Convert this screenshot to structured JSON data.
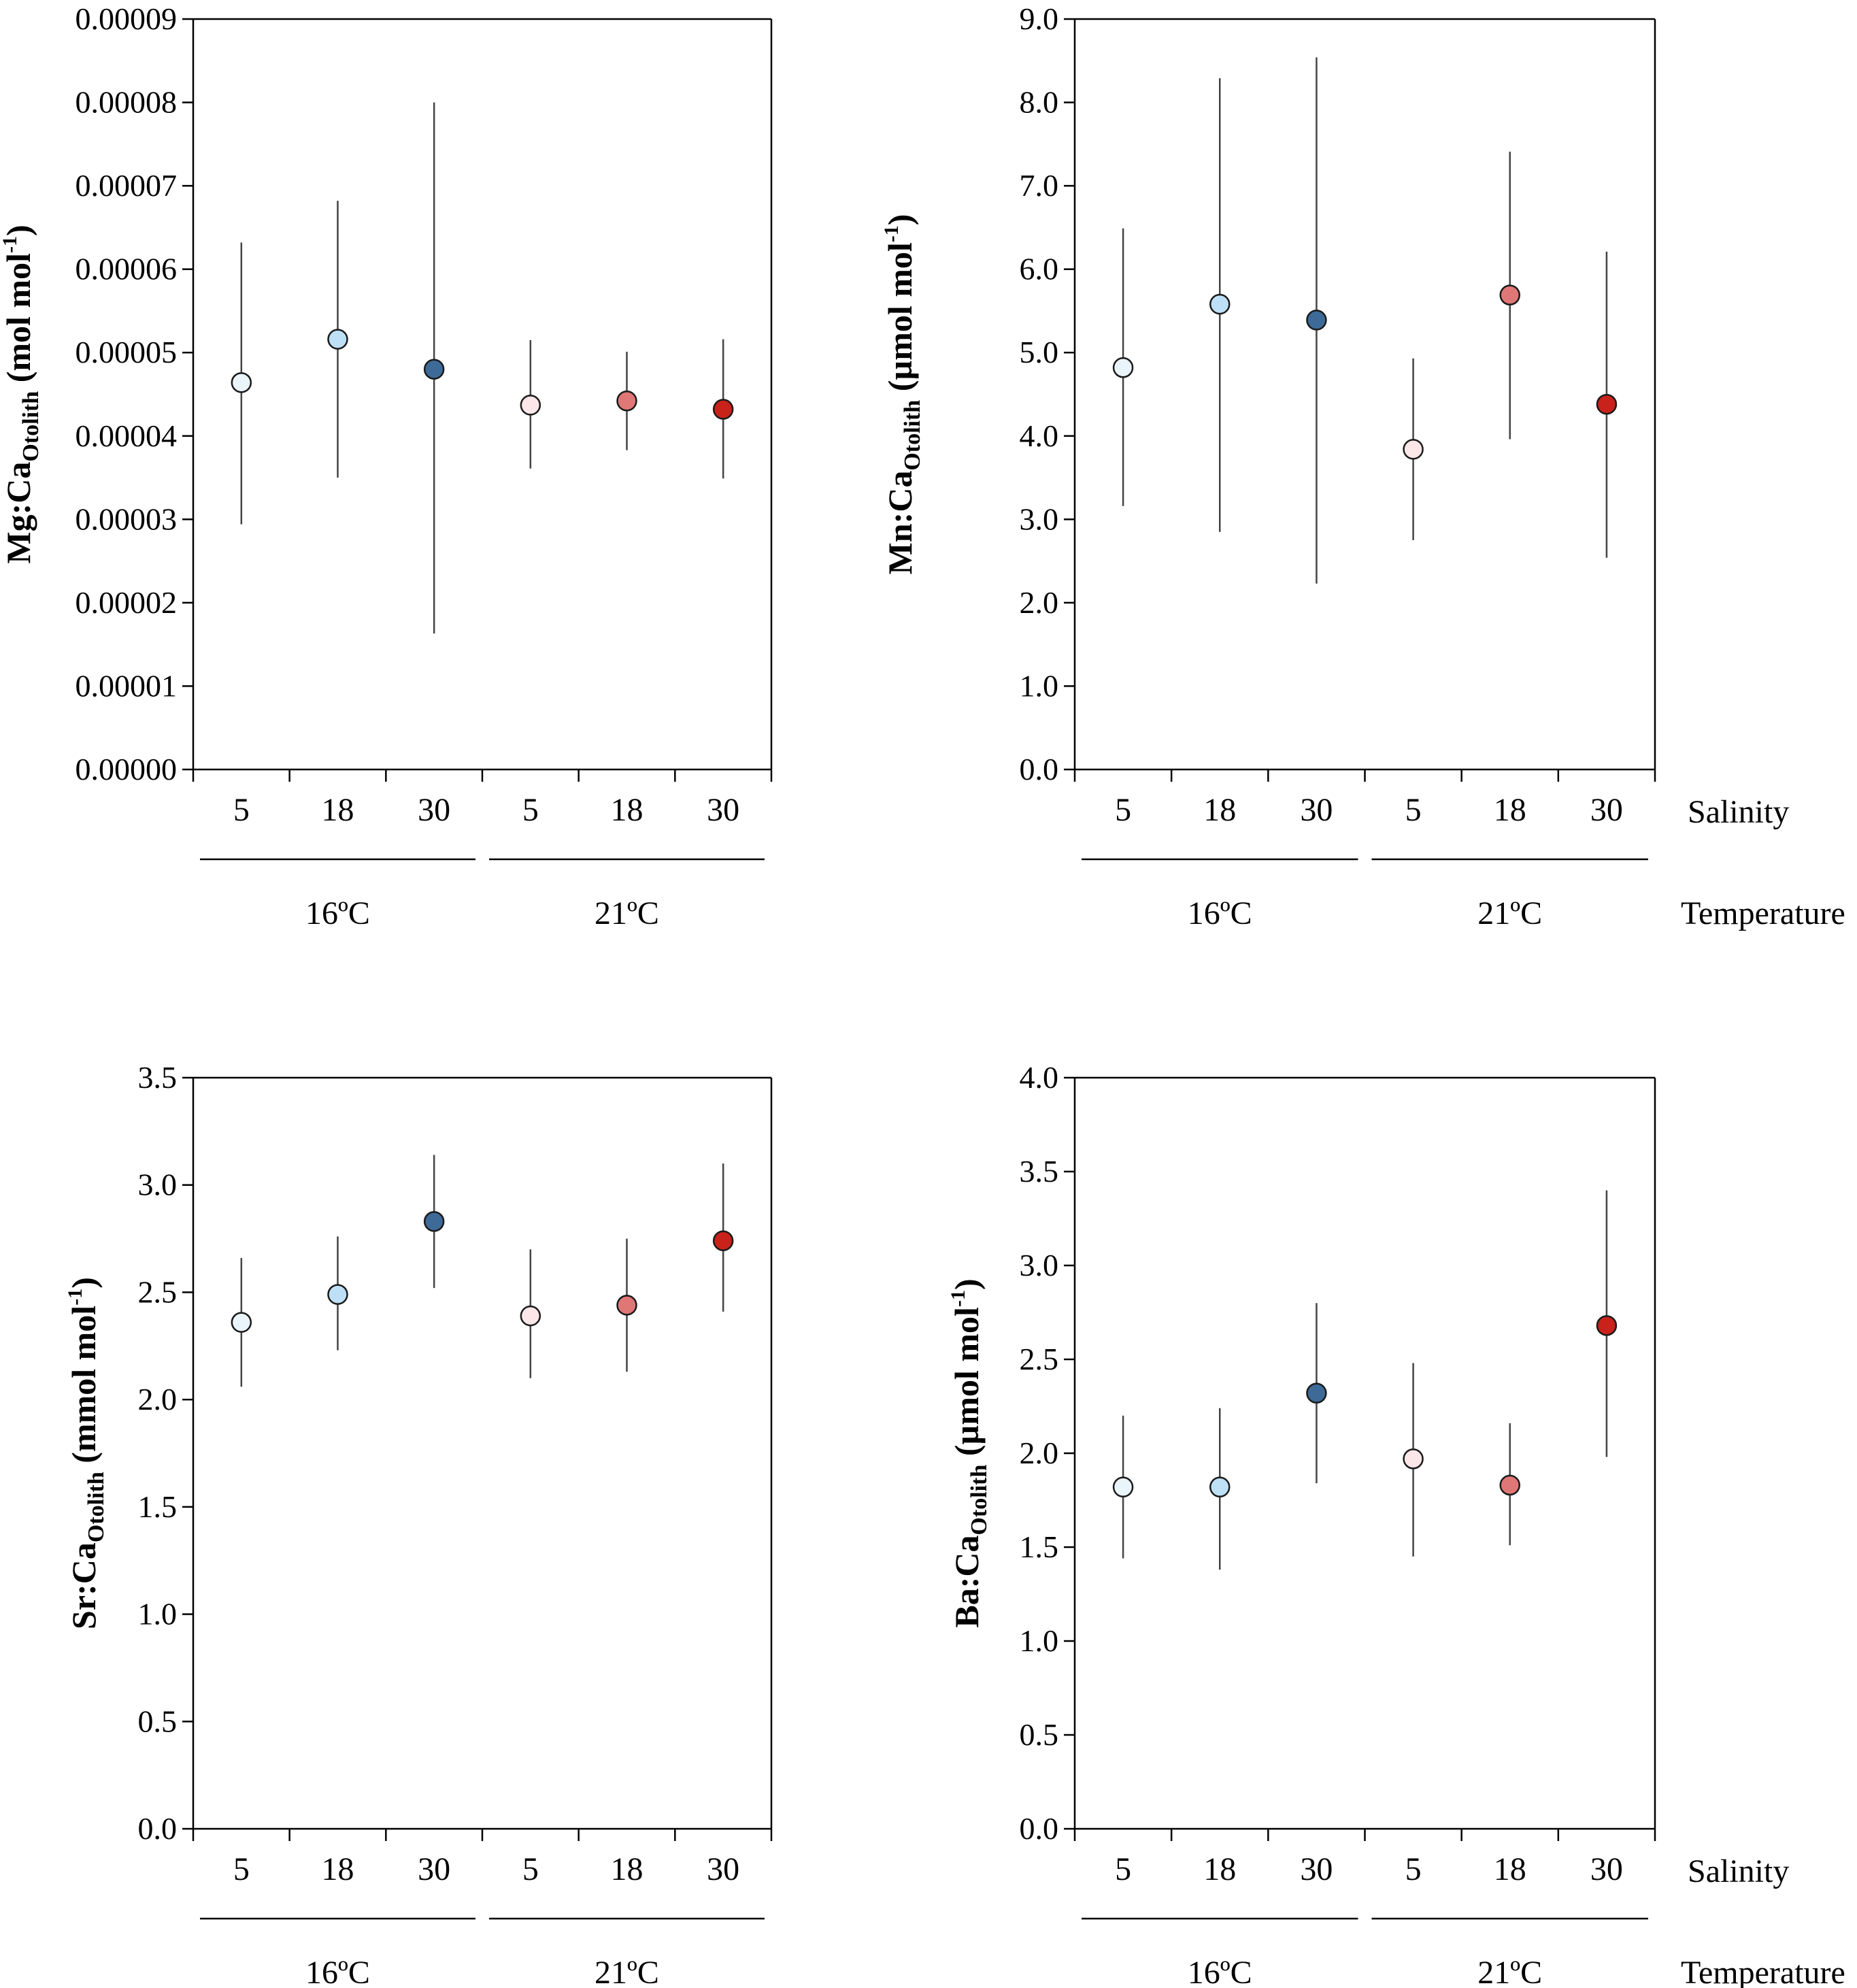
{
  "chart_data": [
    {
      "type": "scatter",
      "panel": "top-left",
      "ylabel": {
        "prefix": "Mg:Ca",
        "sub": "Otolith",
        "unit": " (mol mol",
        "sup": "-1",
        "close": ")"
      },
      "ylim": [
        0,
        9e-05
      ],
      "yticks": [
        0,
        1e-05,
        2e-05,
        3e-05,
        4e-05,
        5e-05,
        6e-05,
        7e-05,
        8e-05,
        9e-05
      ],
      "ytick_labels": [
        "0.00000",
        "0.00001",
        "0.00002",
        "0.00003",
        "0.00004",
        "0.00005",
        "0.00006",
        "0.00007",
        "0.00008",
        "0.00009"
      ],
      "categories": [
        "5",
        "18",
        "30",
        "5",
        "18",
        "30"
      ],
      "groups": [
        "16ºC",
        "21ºC"
      ],
      "values": [
        4.64e-05,
        5.16e-05,
        4.8e-05,
        4.37e-05,
        4.42e-05,
        4.32e-05
      ],
      "err_low": [
        2.94e-05,
        3.5e-05,
        1.63e-05,
        3.61e-05,
        3.83e-05,
        3.49e-05
      ],
      "err_high": [
        6.32e-05,
        6.82e-05,
        8e-05,
        5.15e-05,
        5.01e-05,
        5.16e-05
      ],
      "show_row_titles": false
    },
    {
      "type": "scatter",
      "panel": "top-right",
      "ylabel": {
        "prefix": "Mn:Ca",
        "sub": "Otolith",
        "unit": " (µmol mol",
        "sup": "-1",
        "close": ")"
      },
      "ylim": [
        0,
        9
      ],
      "yticks": [
        0,
        1,
        2,
        3,
        4,
        5,
        6,
        7,
        8,
        9
      ],
      "ytick_labels": [
        "0.0",
        "1.0",
        "2.0",
        "3.0",
        "4.0",
        "5.0",
        "6.0",
        "7.0",
        "8.0",
        "9.0"
      ],
      "categories": [
        "5",
        "18",
        "30",
        "5",
        "18",
        "30"
      ],
      "groups": [
        "16ºC",
        "21ºC"
      ],
      "values": [
        4.82,
        5.58,
        5.39,
        3.84,
        5.69,
        4.38
      ],
      "err_low": [
        3.16,
        2.85,
        2.23,
        2.75,
        3.96,
        2.54
      ],
      "err_high": [
        6.49,
        8.29,
        8.54,
        4.93,
        7.41,
        6.21
      ],
      "show_row_titles": true
    },
    {
      "type": "scatter",
      "panel": "bottom-left",
      "ylabel": {
        "prefix": "Sr:Ca",
        "sub": "Otolith",
        "unit": " (mmol mol",
        "sup": "-1",
        "close": ")"
      },
      "ylim": [
        0,
        3.5
      ],
      "yticks": [
        0,
        0.5,
        1.0,
        1.5,
        2.0,
        2.5,
        3.0,
        3.5
      ],
      "ytick_labels": [
        "0.0",
        "0.5",
        "1.0",
        "1.5",
        "2.0",
        "2.5",
        "3.0",
        "3.5"
      ],
      "categories": [
        "5",
        "18",
        "30",
        "5",
        "18",
        "30"
      ],
      "groups": [
        "16ºC",
        "21ºC"
      ],
      "values": [
        2.36,
        2.49,
        2.83,
        2.39,
        2.44,
        2.74
      ],
      "err_low": [
        2.06,
        2.23,
        2.52,
        2.1,
        2.13,
        2.41
      ],
      "err_high": [
        2.66,
        2.76,
        3.14,
        2.7,
        2.75,
        3.1
      ],
      "show_row_titles": false
    },
    {
      "type": "scatter",
      "panel": "bottom-right",
      "ylabel": {
        "prefix": "Ba:Ca",
        "sub": "Otolith",
        "unit": " (µmol mol",
        "sup": "-1",
        "close": ")"
      },
      "ylim": [
        0,
        4.0
      ],
      "yticks": [
        0,
        0.5,
        1.0,
        1.5,
        2.0,
        2.5,
        3.0,
        3.5,
        4.0
      ],
      "ytick_labels": [
        "0.0",
        "0.5",
        "1.0",
        "1.5",
        "2.0",
        "2.5",
        "3.0",
        "3.5",
        "4.0"
      ],
      "categories": [
        "5",
        "18",
        "30",
        "5",
        "18",
        "30"
      ],
      "groups": [
        "16ºC",
        "21ºC"
      ],
      "values": [
        1.82,
        1.82,
        2.32,
        1.97,
        1.83,
        2.68
      ],
      "err_low": [
        1.44,
        1.38,
        1.84,
        1.45,
        1.51,
        1.98
      ],
      "err_high": [
        2.2,
        2.24,
        2.8,
        2.48,
        2.16,
        3.4
      ],
      "show_row_titles": true
    }
  ],
  "row_titles": {
    "salinity": "Salinity",
    "temperature": "Temperature"
  },
  "marker_colors": [
    "#EAF4FB",
    "#BEE0F7",
    "#3E6A97",
    "#FBE6E8",
    "#E07777",
    "#C8221A"
  ],
  "marker_edge_color": "#1a1a1a",
  "errorbar_color": "#444444"
}
